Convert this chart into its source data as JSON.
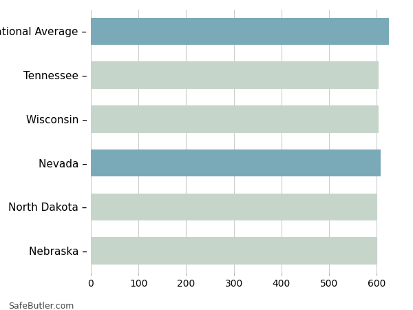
{
  "categories": [
    "National Average",
    "Tennessee",
    "Wisconsin",
    "Nevada",
    "North Dakota",
    "Nebraska"
  ],
  "values": [
    625,
    604,
    604,
    608,
    601,
    599
  ],
  "colors": [
    "#7aaab8",
    "#c5d5ca",
    "#c5d5ca",
    "#7aaab8",
    "#c5d5ca",
    "#c5d5ca"
  ],
  "xlim": [
    0,
    650
  ],
  "xticks": [
    0,
    100,
    200,
    300,
    400,
    500,
    600
  ],
  "background_color": "#ffffff",
  "grid_color": "#cccccc",
  "footer_text": "SafeButler.com",
  "bar_height": 0.62,
  "label_fontsize": 11,
  "tick_fontsize": 10
}
